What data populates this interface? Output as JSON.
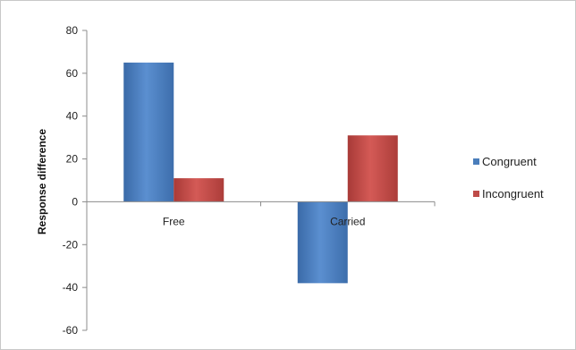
{
  "chart_data": {
    "type": "bar",
    "categories": [
      "Free",
      "Carried"
    ],
    "series": [
      {
        "name": "Congruent",
        "values": [
          65,
          -38
        ],
        "color": "#4a7ebb"
      },
      {
        "name": "Incongruent",
        "values": [
          11,
          31
        ],
        "color": "#be4b48"
      }
    ],
    "ylabel": "Response difference",
    "ylim": [
      -60,
      80
    ],
    "yticks": [
      80,
      60,
      40,
      20,
      0,
      -20,
      -40,
      -60
    ],
    "grid": false,
    "legend": "right"
  }
}
